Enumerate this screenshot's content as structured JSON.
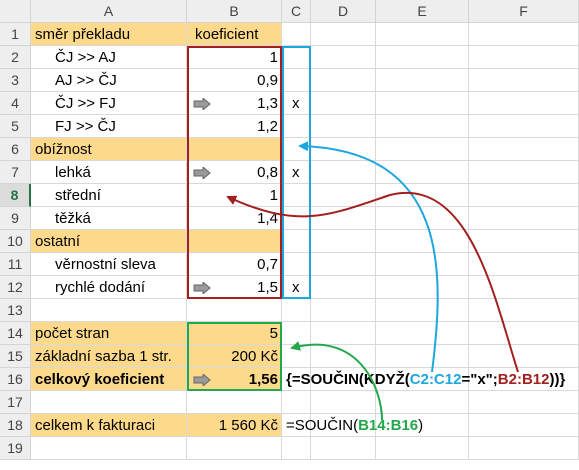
{
  "columns": [
    "A",
    "B",
    "C",
    "D",
    "E",
    "F"
  ],
  "rows": [
    "1",
    "2",
    "3",
    "4",
    "5",
    "6",
    "7",
    "8",
    "9",
    "10",
    "11",
    "12",
    "13",
    "14",
    "15",
    "16",
    "17",
    "18",
    "19"
  ],
  "active_row": "8",
  "cells": {
    "A1": "směr překladu",
    "B1": "koeficient",
    "A2": "ČJ >> AJ",
    "B2": "1",
    "A3": "AJ >> ČJ",
    "B3": "0,9",
    "A4": "ČJ >> FJ",
    "B4": "1,3",
    "C4": "x",
    "A5": "FJ >> ČJ",
    "B5": "1,2",
    "A6": "obížnost",
    "A7": "lehká",
    "B7": "0,8",
    "C7": "x",
    "A8": "střední",
    "B8": "1",
    "A9": "těžká",
    "B9": "1,4",
    "A10": "ostatní",
    "A11": "věrnostní sleva",
    "B11": "0,7",
    "A12": "rychlé dodání",
    "B12": "1,5",
    "C12": "x",
    "A14": "počet stran",
    "B14": "5",
    "A15": "základní sazba 1 str.",
    "B15": "200 Kč",
    "A16": "celkový koeficient",
    "B16": "1,56",
    "A18": "celkem k fakturaci",
    "B18": "1 560 Kč"
  },
  "formula16": {
    "part1": "{=SOUČIN(KDYŽ(",
    "range_c": "C2:C12",
    "part2": "=\"x\";",
    "range_b": "B2:B12",
    "part3": "))}"
  },
  "formula18": {
    "part1": "=SOUČIN(",
    "range": "B14:B16",
    "part2": ")"
  },
  "colors": {
    "orange": "#fdd98b",
    "red_box": "#a31f1f",
    "blue_box": "#1da7e0",
    "green_box": "#22a84a"
  }
}
